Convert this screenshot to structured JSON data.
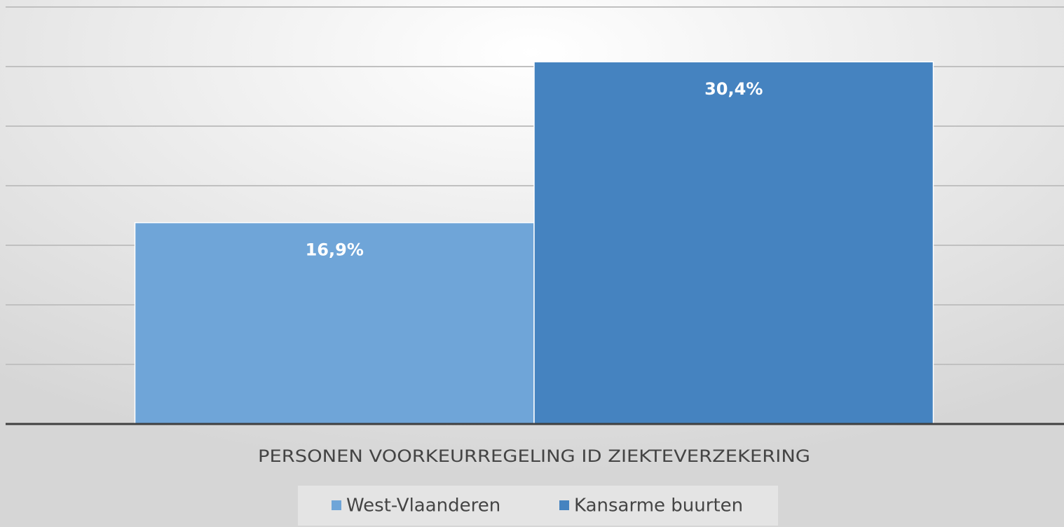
{
  "chart_data": {
    "type": "bar",
    "categories": [
      "PERSONEN VOORKEURREGELING ID ZIEKTEVERZEKERING"
    ],
    "series": [
      {
        "name": "West-Vlaanderen",
        "color": "#6fa5d8",
        "values": [
          16.9
        ],
        "value_labels": [
          "16,9%"
        ]
      },
      {
        "name": "Kansarme buurten",
        "color": "#4583c0",
        "values": [
          30.4
        ],
        "value_labels": [
          "30,4%"
        ]
      }
    ],
    "ylim": [
      0,
      35
    ],
    "yticks": [
      0,
      5,
      10,
      15,
      20,
      25,
      30,
      35
    ],
    "grid": true,
    "legend": "bottom"
  }
}
